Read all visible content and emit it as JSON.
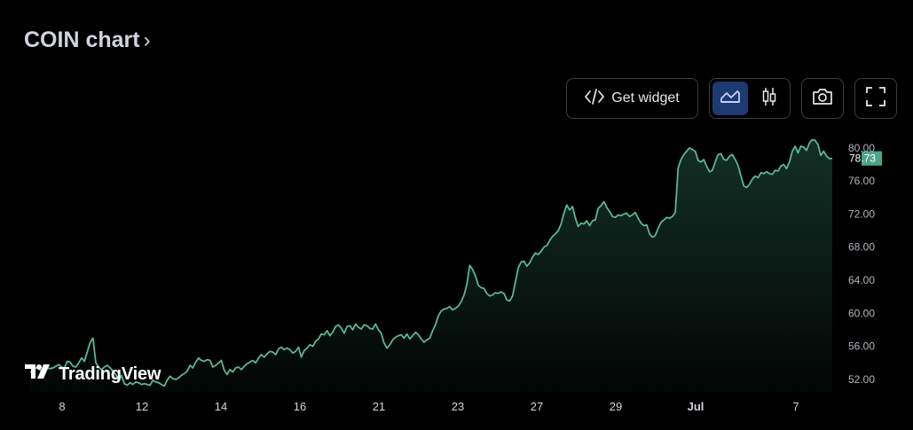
{
  "header": {
    "title": "COIN chart",
    "chevron": "›"
  },
  "toolbar": {
    "widget_label": "Get widget",
    "widget_icon": "code-icon",
    "area_icon": "area-chart-icon",
    "candle_icon": "candlestick-icon",
    "snapshot_icon": "camera-icon",
    "fullscreen_icon": "fullscreen-icon"
  },
  "branding": {
    "logo_text": "TradingView"
  },
  "chart_data": {
    "type": "area",
    "x_tick_labels": [
      "8",
      "12",
      "14",
      "16",
      "21",
      "23",
      "27",
      "29",
      "Jul",
      "7"
    ],
    "y_tick_labels": [
      "80.00",
      "76.00",
      "72.00",
      "68.00",
      "64.00",
      "60.00",
      "56.00",
      "52.00"
    ],
    "ylim": [
      50.5,
      81.8
    ],
    "last_price_label": "78.73",
    "colors": {
      "line": "#5bb594",
      "price_tag": "#4ea489",
      "background": "#000000"
    },
    "series": [
      {
        "values": [
          52.9,
          53.0,
          53.4,
          53.3,
          53.0,
          53.1,
          53.4,
          53.3,
          53.4,
          53.6,
          53.8,
          53.5,
          53.4,
          54.2,
          54.1,
          53.6,
          53.5,
          54.0,
          54.6,
          54.2,
          55.3,
          56.5,
          57.0,
          54.0,
          53.5,
          53.2,
          53.5,
          53.7,
          53.4,
          53.0,
          52.6,
          51.8,
          52.5,
          51.5,
          51.3,
          51.6,
          51.4,
          51.7,
          51.6,
          51.4,
          51.5,
          51.4,
          51.3,
          51.9,
          51.7,
          51.6,
          51.4,
          51.2,
          51.9,
          52.4,
          52.1,
          52.0,
          52.2,
          52.5,
          52.7,
          53.0,
          53.7,
          53.4,
          54.1,
          54.6,
          54.3,
          54.2,
          54.4,
          54.3,
          53.5,
          53.7,
          54.0,
          54.3,
          53.1,
          52.6,
          53.2,
          52.9,
          53.4,
          53.5,
          53.2,
          53.6,
          53.9,
          54.1,
          54.3,
          54.0,
          54.6,
          55.0,
          54.7,
          55.1,
          55.4,
          55.3,
          55.0,
          55.7,
          55.9,
          55.6,
          55.8,
          55.6,
          55.2,
          55.4,
          55.9,
          54.7,
          55.5,
          55.8,
          56.2,
          56.0,
          56.6,
          56.9,
          57.5,
          57.4,
          57.9,
          57.3,
          57.7,
          58.4,
          58.6,
          58.2,
          57.6,
          58.4,
          58.5,
          58.0,
          58.7,
          58.3,
          58.1,
          58.6,
          58.5,
          58.2,
          58.1,
          58.7,
          58.0,
          57.6,
          56.4,
          55.8,
          56.2,
          56.8,
          57.1,
          57.3,
          57.4,
          57.0,
          57.5,
          56.9,
          57.3,
          57.7,
          57.4,
          56.9,
          56.5,
          56.8,
          57.0,
          57.9,
          58.6,
          59.7,
          60.3,
          60.5,
          60.6,
          60.8,
          60.4,
          60.6,
          60.9,
          61.4,
          62.2,
          63.5,
          65.8,
          65.3,
          64.5,
          63.4,
          63.1,
          63.0,
          62.4,
          62.1,
          62.2,
          62.5,
          62.4,
          62.6,
          62.4,
          61.6,
          61.5,
          62.1,
          63.8,
          65.5,
          66.2,
          66.3,
          65.7,
          66.1,
          66.8,
          67.3,
          67.1,
          67.5,
          68.0,
          68.2,
          68.8,
          69.3,
          69.6,
          70.0,
          70.8,
          72.1,
          73.1,
          72.5,
          72.9,
          71.5,
          70.5,
          70.9,
          70.8,
          71.2,
          70.6,
          71.2,
          71.3,
          72.7,
          73.0,
          73.5,
          72.8,
          72.3,
          71.7,
          71.6,
          71.9,
          71.8,
          72.0,
          72.1,
          71.7,
          71.9,
          72.2,
          71.5,
          70.9,
          70.6,
          70.7,
          69.6,
          69.2,
          69.4,
          70.3,
          71.0,
          71.3,
          71.6,
          71.5,
          71.7,
          72.2,
          77.6,
          78.6,
          79.2,
          79.6,
          80.0,
          79.8,
          79.6,
          78.5,
          78.3,
          78.6,
          77.8,
          77.1,
          77.3,
          78.3,
          79.2,
          79.3,
          78.6,
          78.5,
          79.0,
          79.2,
          78.6,
          77.9,
          76.6,
          75.4,
          75.2,
          75.6,
          76.2,
          76.6,
          76.4,
          77.0,
          76.9,
          77.1,
          76.9,
          76.8,
          77.3,
          77.2,
          77.8,
          78.0,
          77.5,
          78.3,
          79.6,
          80.2,
          79.4,
          80.2,
          80.1,
          79.7,
          80.6,
          81.0,
          80.9,
          80.4,
          79.1,
          79.6,
          79.0,
          78.7,
          78.73
        ]
      }
    ]
  }
}
